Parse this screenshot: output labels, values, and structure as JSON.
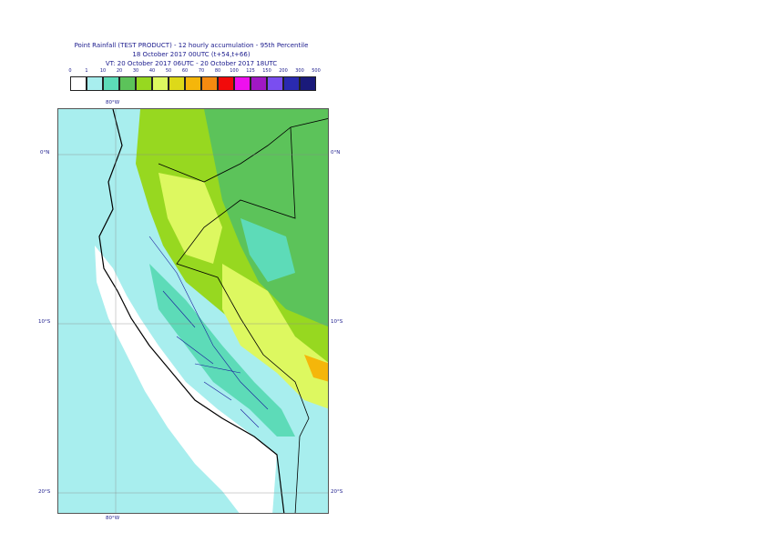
{
  "title": {
    "line1": "Point Rainfall (TEST PRODUCT) - 12 hourly accumulation - 95th Percentile",
    "line2": "18 October 2017 00UTC (t+54,t+66)",
    "line3": "VT: 20 October 2017 06UTC - 20 October 2017 18UTC"
  },
  "legend": {
    "labels": [
      "0",
      "1",
      "10",
      "20",
      "30",
      "40",
      "50",
      "60",
      "70",
      "80",
      "100",
      "125",
      "150",
      "200",
      "300",
      "500"
    ],
    "colors": [
      "#ffffff",
      "#a8eeee",
      "#5ddbb8",
      "#5cc35a",
      "#97d820",
      "#ddf860",
      "#ddd919",
      "#f5b60a",
      "#f58a10",
      "#f20a0a",
      "#ee10ee",
      "#a018c4",
      "#7a4ef0",
      "#2a2ab0",
      "#1a1a7a"
    ]
  },
  "map": {
    "lon_labels": {
      "top": "80°W",
      "bottom": "80°W"
    },
    "lat_labels": {
      "left": [
        "0°N",
        "10°S",
        "20°S"
      ],
      "right": [
        "0°N",
        "10°S",
        "20°S"
      ]
    }
  }
}
